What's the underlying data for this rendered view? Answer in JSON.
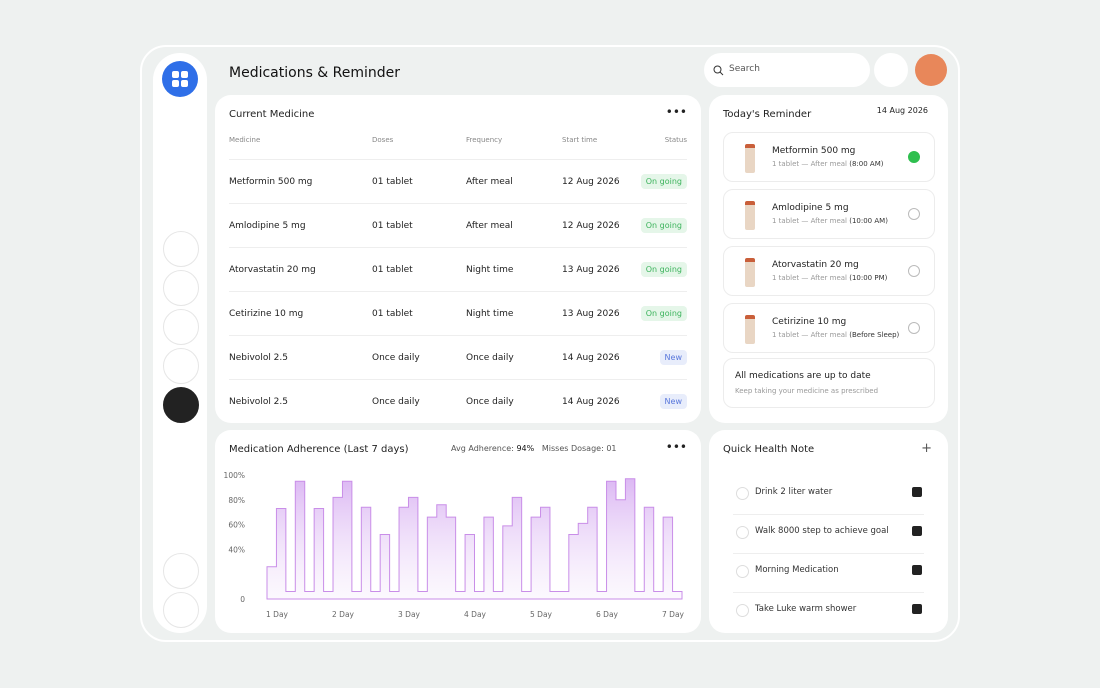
{
  "header": {
    "title": "Medications & Reminder",
    "search_placeholder": "Search"
  },
  "current_medicine": {
    "title": "Current Medicine",
    "columns": [
      "Medicine",
      "Doses",
      "Frequency",
      "Start time",
      "Status"
    ],
    "rows": [
      {
        "medicine": "Metformin 500 mg",
        "doses": "01 tablet",
        "frequency": "After meal",
        "start": "12 Aug 2026",
        "status": "On going",
        "status_color": "#3cb35c",
        "status_bg": "#e5f6e9"
      },
      {
        "medicine": "Amlodipine 5 mg",
        "doses": "01 tablet",
        "frequency": "After meal",
        "start": "12 Aug 2026",
        "status": "On going",
        "status_color": "#3cb35c",
        "status_bg": "#e5f6e9"
      },
      {
        "medicine": "Atorvastatin 20 mg",
        "doses": "01 tablet",
        "frequency": "Night time",
        "start": "13 Aug 2026",
        "status": "On going",
        "status_color": "#3cb35c",
        "status_bg": "#e5f6e9"
      },
      {
        "medicine": "Cetirizine 10 mg",
        "doses": "01 tablet",
        "frequency": "Night time",
        "start": "13 Aug 2026",
        "status": "On going",
        "status_color": "#3cb35c",
        "status_bg": "#e5f6e9"
      },
      {
        "medicine": "Nebivolol 2.5",
        "doses": "Once daily",
        "frequency": "Once daily",
        "start": "14 Aug 2026",
        "status": "New",
        "status_color": "#5a78dc",
        "status_bg": "#e8edfb"
      },
      {
        "medicine": "Nebivolol 2.5",
        "doses": "Once daily",
        "frequency": "Once daily",
        "start": "14 Aug 2026",
        "status": "New",
        "status_color": "#5a78dc",
        "status_bg": "#e8edfb"
      }
    ]
  },
  "reminder": {
    "title": "Today's Reminder",
    "date": "14 Aug 2026",
    "items": [
      {
        "name": "Metformin 500 mg",
        "detail": "1 tablet — After meal",
        "time": "(8:00 AM)",
        "done": true
      },
      {
        "name": "Amlodipine 5 mg",
        "detail": "1 tablet — After meal",
        "time": "(10:00 AM)",
        "done": false
      },
      {
        "name": "Atorvastatin 20 mg",
        "detail": "1 tablet — After meal",
        "time": "(10:00 PM)",
        "done": false
      },
      {
        "name": "Cetirizine 10 mg",
        "detail": "1 tablet — After meal",
        "time": "(Before Sleep)",
        "done": false
      }
    ],
    "status_title": "All medications are up to date",
    "status_subtitle": "Keep taking your medicine as prescribed"
  },
  "adherence": {
    "title": "Medication Adherence (Last 7 days)",
    "avg_label": "Avg Adherence:",
    "avg_value": "94%",
    "misses_label": "Misses Dosage:",
    "misses_value": "01",
    "chart_data": {
      "type": "step-area",
      "x_labels": [
        "1 Day",
        "2 Day",
        "3 Day",
        "4 Day",
        "5 Day",
        "6 Day",
        "7 Day"
      ],
      "values": [
        26,
        73,
        6,
        95,
        6,
        73,
        6,
        82,
        95,
        6,
        74,
        6,
        52,
        6,
        74,
        82,
        6,
        66,
        76,
        66,
        6,
        52,
        6,
        66,
        6,
        59,
        82,
        6,
        66,
        74,
        6,
        6,
        52,
        61,
        74,
        6,
        95,
        80,
        97,
        6,
        74,
        6,
        66,
        6
      ],
      "ylim": [
        0,
        100
      ],
      "yticks": [
        0,
        {
          "value": 40,
          "label": "40%"
        },
        {
          "value": 60,
          "label": "60%"
        },
        {
          "value": 80,
          "label": "80%"
        },
        {
          "value": 100,
          "label": "100%"
        }
      ],
      "color": "#c98ee8"
    }
  },
  "health_note": {
    "title": "Quick Health Note",
    "items": [
      {
        "text": "Drink 2 liter water",
        "checked": true
      },
      {
        "text": "Walk 8000 step to achieve goal",
        "checked": true
      },
      {
        "text": "Morning Medication",
        "checked": true
      },
      {
        "text": "Take Luke warm shower",
        "checked": true
      }
    ]
  }
}
